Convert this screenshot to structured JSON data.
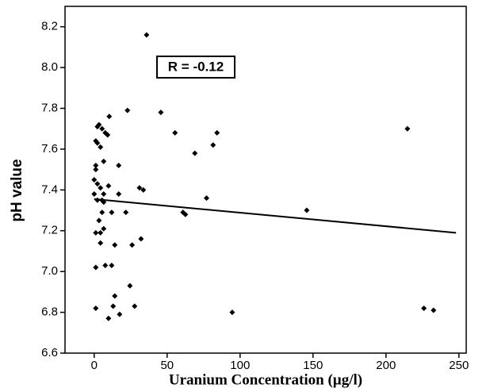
{
  "chart_data": {
    "type": "scatter",
    "x_label": "Uranium Concentration (µg/l)",
    "y_label": "pH value",
    "annotation": "R = -0.12",
    "color": "#000000",
    "xlim": [
      -20,
      255
    ],
    "ylim": [
      6.6,
      8.3
    ],
    "xticks": [
      0,
      50,
      100,
      150,
      200,
      250
    ],
    "yticks": [
      6.6,
      6.8,
      {
        "value": 7,
        "label": "7.0"
      },
      7.2,
      7.4,
      7.6,
      7.8,
      {
        "value": 8,
        "label": "8.0"
      },
      8.2
    ],
    "x": [
      35.9,
      22.8,
      45.7,
      55.4,
      84.2,
      81.5,
      69,
      77,
      145.7,
      214.7,
      60.9,
      62.5,
      94.6,
      226,
      232.6,
      31,
      33.7,
      32.1,
      26,
      27.7,
      24.5,
      21.7,
      16.8,
      16.8,
      10.3,
      7.6,
      9.2,
      5.4,
      3.3,
      2.2,
      1.1,
      2.2,
      4.3,
      6.5,
      1.1,
      1.1,
      0,
      2.2,
      4.3,
      9.8,
      6.5,
      0,
      2.2,
      5.4,
      6.5,
      12,
      5.4,
      3.3,
      6.5,
      4.3,
      1.1,
      4.3,
      14.1,
      1.1,
      7.6,
      12,
      14.1,
      13,
      1.1,
      9.8,
      17.4
    ],
    "y": [
      8.16,
      7.79,
      7.78,
      7.68,
      7.68,
      7.62,
      7.58,
      7.36,
      7.3,
      7.7,
      7.29,
      7.28,
      6.8,
      6.82,
      6.81,
      7.41,
      7.4,
      7.16,
      7.13,
      6.83,
      6.93,
      7.29,
      7.38,
      7.52,
      7.76,
      7.68,
      7.67,
      7.7,
      7.72,
      7.71,
      7.64,
      7.63,
      7.61,
      7.54,
      7.52,
      7.5,
      7.45,
      7.43,
      7.41,
      7.42,
      7.38,
      7.38,
      7.35,
      7.35,
      7.34,
      7.29,
      7.29,
      7.25,
      7.21,
      7.19,
      7.19,
      7.14,
      7.13,
      7.02,
      7.03,
      7.03,
      6.88,
      6.83,
      6.82,
      6.77,
      6.79
    ],
    "trend": {
      "x": [
        0,
        248
      ],
      "y": [
        7.355,
        7.19
      ]
    }
  }
}
